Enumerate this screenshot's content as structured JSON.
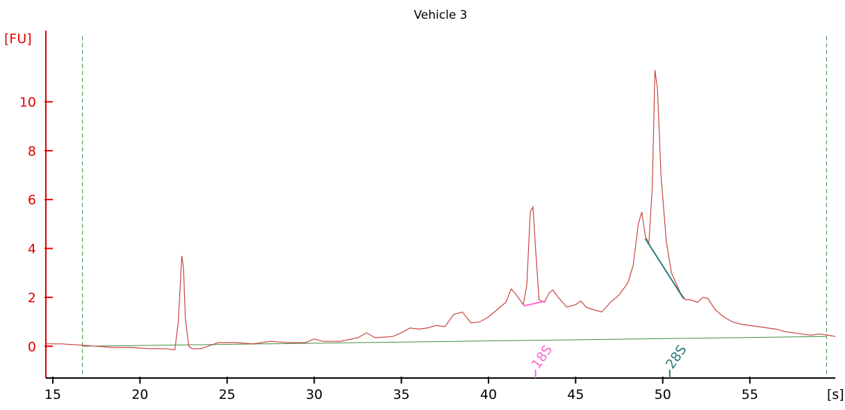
{
  "chart_data": {
    "type": "line",
    "title": "Vehicle 3",
    "xlabel": "[s]",
    "ylabel": "[FU]",
    "xlim": [
      14.6,
      59.9
    ],
    "ylim": [
      -1.3,
      12.8
    ],
    "x_ticks": [
      15,
      20,
      25,
      30,
      35,
      40,
      45,
      50,
      55
    ],
    "y_ticks": [
      0,
      2,
      4,
      6,
      8,
      10
    ],
    "grid": false,
    "colors": {
      "trace": "#c8423c",
      "y_axis": "#e00000",
      "x_axis": "#000000",
      "baseline": "#3d8c3d",
      "window_markers": "#3d8c3d",
      "peak_18S": "#ff66cc",
      "peak_28S": "#2a7a7a"
    },
    "series": [
      {
        "x": [
          14.6,
          15.5,
          16.5,
          17.5,
          18.5,
          19.5,
          20.5,
          21.5,
          22.0,
          22.2,
          22.4,
          22.5,
          22.6,
          22.8,
          23.0,
          23.5,
          24.5,
          25.5,
          26.5,
          27.5,
          28.5,
          29.5,
          30.0,
          30.5,
          31.5,
          32.5,
          33.0,
          33.5,
          34.5,
          35.0,
          35.5,
          36.0,
          36.5,
          37.0,
          37.5,
          38.0,
          38.5,
          39.0,
          39.5,
          40.0,
          40.5,
          41.0,
          41.3,
          41.6,
          42.0,
          42.2,
          42.4,
          42.55,
          42.7,
          42.9,
          43.2,
          43.5,
          43.7,
          44.0,
          44.5,
          45.0,
          45.3,
          45.6,
          46.0,
          46.5,
          47.0,
          47.5,
          48.0,
          48.3,
          48.6,
          48.8,
          49.0,
          49.2,
          49.4,
          49.55,
          49.7,
          49.9,
          50.2,
          50.5,
          51.0,
          51.3,
          51.6,
          52.0,
          52.3,
          52.6,
          53.0,
          53.5,
          54.0,
          54.5,
          55.0,
          55.5,
          56.0,
          56.5,
          57.0,
          57.5,
          58.0,
          58.5,
          59.0,
          59.5,
          59.9
        ],
        "values": [
          0.1,
          0.1,
          0.05,
          0.0,
          -0.05,
          -0.05,
          -0.1,
          -0.1,
          -0.15,
          1.0,
          3.7,
          3.2,
          1.2,
          0.0,
          -0.1,
          -0.1,
          0.15,
          0.15,
          0.1,
          0.2,
          0.15,
          0.15,
          0.3,
          0.2,
          0.2,
          0.35,
          0.55,
          0.35,
          0.4,
          0.55,
          0.75,
          0.7,
          0.75,
          0.85,
          0.8,
          1.3,
          1.4,
          0.95,
          1.0,
          1.2,
          1.5,
          1.8,
          2.35,
          2.1,
          1.7,
          2.5,
          5.5,
          5.7,
          4.0,
          1.9,
          1.8,
          2.2,
          2.3,
          2.0,
          1.6,
          1.7,
          1.85,
          1.6,
          1.5,
          1.4,
          1.8,
          2.1,
          2.6,
          3.3,
          5.0,
          5.5,
          4.5,
          4.2,
          6.5,
          11.3,
          10.5,
          7.0,
          4.3,
          3.0,
          2.2,
          1.9,
          1.9,
          1.8,
          2.0,
          1.95,
          1.5,
          1.2,
          1.0,
          0.9,
          0.85,
          0.8,
          0.75,
          0.7,
          0.6,
          0.55,
          0.5,
          0.45,
          0.5,
          0.45,
          0.4
        ]
      }
    ],
    "baseline": {
      "x": [
        16.7,
        59.4
      ],
      "y": [
        0.0,
        0.4
      ]
    },
    "window_markers": [
      16.7,
      59.4
    ],
    "peaks": [
      {
        "label": "18S",
        "x": 42.7,
        "seg_x": [
          42.0,
          43.3
        ],
        "seg_y": [
          1.65,
          1.85
        ]
      },
      {
        "label": "28S",
        "x": 50.4,
        "seg_x": [
          49.0,
          51.2
        ],
        "seg_y": [
          4.4,
          1.95
        ]
      }
    ]
  }
}
